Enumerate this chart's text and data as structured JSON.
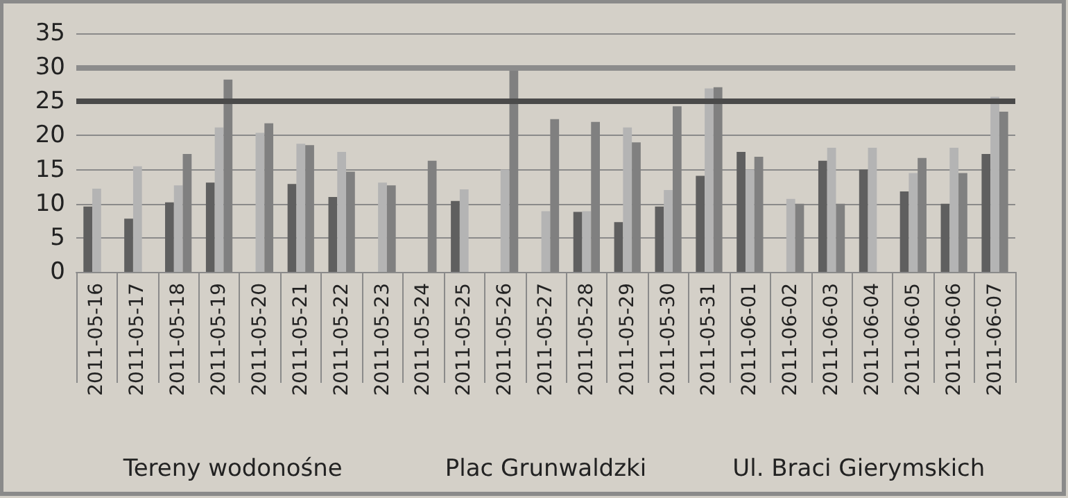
{
  "chart_data": {
    "type": "bar",
    "categories": [
      "2011-05-16",
      "2011-05-17",
      "2011-05-18",
      "2011-05-19",
      "2011-05-20",
      "2011-05-21",
      "2011-05-22",
      "2011-05-23",
      "2011-05-24",
      "2011-05-25",
      "2011-05-26",
      "2011-05-27",
      "2011-05-28",
      "2011-05-29",
      "2011-05-30",
      "2011-05-31",
      "2011-06-01",
      "2011-06-02",
      "2011-06-03",
      "2011-06-04",
      "2011-06-05",
      "2011-06-06",
      "2011-06-07"
    ],
    "series": [
      {
        "color": "#5f5f5f",
        "values": [
          9.6,
          7.8,
          10.2,
          13.1,
          null,
          12.9,
          11.0,
          null,
          null,
          10.4,
          null,
          null,
          8.8,
          7.3,
          9.6,
          14.1,
          17.6,
          null,
          16.3,
          15.0,
          11.8,
          10.0,
          17.3
        ]
      },
      {
        "color": "#b4b4b4",
        "values": [
          12.2,
          15.5,
          12.7,
          21.2,
          20.4,
          18.8,
          17.6,
          13.1,
          null,
          12.1,
          15.0,
          8.9,
          8.9,
          21.2,
          12.0,
          26.9,
          15.0,
          10.7,
          18.2,
          18.2,
          14.5,
          18.2,
          25.7
        ]
      },
      {
        "color": "#808080",
        "values": [
          null,
          null,
          17.3,
          28.2,
          21.8,
          18.6,
          14.7,
          12.7,
          16.3,
          null,
          29.9,
          22.4,
          22.0,
          19.0,
          24.3,
          27.1,
          16.9,
          10.0,
          10.0,
          null,
          16.7,
          14.5,
          23.5
        ]
      }
    ],
    "ylim": [
      0,
      35
    ],
    "yticks": [
      0,
      5,
      10,
      15,
      20,
      25,
      30,
      35
    ],
    "grid": "y",
    "ref_lines": [
      {
        "axis": "y",
        "value": 30,
        "color": "#8c8c8c"
      },
      {
        "axis": "y",
        "value": 25,
        "color": "#4a4a4a"
      }
    ],
    "annotations": [
      "Tereny wodonośne",
      "Plac Grunwaldzki",
      "Ul. Braci Gierymskich"
    ]
  }
}
